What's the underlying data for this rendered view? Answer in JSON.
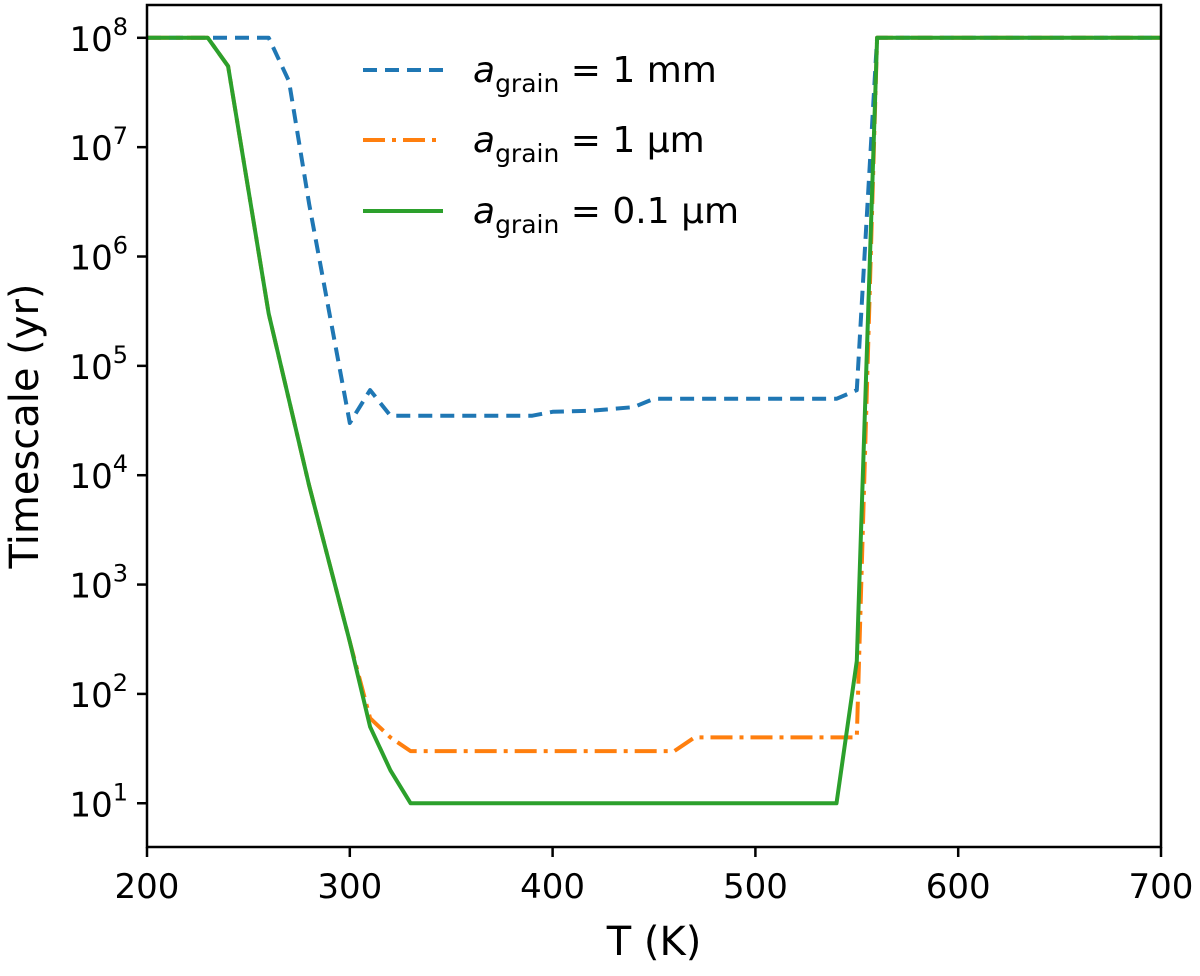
{
  "chart_data": {
    "type": "line",
    "title": "",
    "xlabel": "T (K)",
    "ylabel": "Timescale (yr)",
    "xlim": [
      200,
      700
    ],
    "ylim_log10": [
      0.6,
      8.3
    ],
    "yscale": "log",
    "legend_position": "top-center",
    "x_ticks": [
      200,
      300,
      400,
      500,
      600,
      700
    ],
    "x_tick_labels": [
      "200",
      "300",
      "400",
      "500",
      "600",
      "700"
    ],
    "y_ticks_log10": [
      1,
      2,
      3,
      4,
      5,
      6,
      7,
      8
    ],
    "y_tick_labels": [
      {
        "base": "10",
        "exp": "1"
      },
      {
        "base": "10",
        "exp": "2"
      },
      {
        "base": "10",
        "exp": "3"
      },
      {
        "base": "10",
        "exp": "4"
      },
      {
        "base": "10",
        "exp": "5"
      },
      {
        "base": "10",
        "exp": "6"
      },
      {
        "base": "10",
        "exp": "7"
      },
      {
        "base": "10",
        "exp": "8"
      }
    ],
    "series": [
      {
        "name": "a_grain = 1 mm",
        "label_var": "a",
        "label_sub": "grain",
        "label_rest": " = 1 mm",
        "color": "#1f77b4",
        "style": "dashed",
        "x": [
          200,
          230,
          260,
          270,
          280,
          290,
          300,
          310,
          320,
          330,
          340,
          350,
          360,
          370,
          380,
          390,
          400,
          420,
          440,
          450,
          460,
          480,
          500,
          520,
          540,
          550,
          560,
          600,
          650,
          700
        ],
        "y": [
          100000000.0,
          100000000.0,
          100000000.0,
          40000000.0,
          3000000.0,
          300000.0,
          30000.0,
          60000.0,
          35000.0,
          35000.0,
          35000.0,
          35000.0,
          35000.0,
          35000.0,
          35000.0,
          35000.0,
          38000.0,
          39000.0,
          42000.0,
          50000.0,
          50000.0,
          50000.0,
          50000.0,
          50000.0,
          50000.0,
          60000.0,
          100000000.0,
          100000000.0,
          100000000.0,
          100000000.0
        ]
      },
      {
        "name": "a_grain = 1 μm",
        "label_var": "a",
        "label_sub": "grain",
        "label_rest": " = 1 μm",
        "color": "#ff7f0e",
        "style": "dashdot",
        "x": [
          200,
          230,
          240,
          260,
          280,
          300,
          310,
          320,
          330,
          350,
          400,
          450,
          460,
          470,
          480,
          500,
          520,
          540,
          550,
          560,
          600,
          650,
          700
        ],
        "y": [
          100000000.0,
          100000000.0,
          55000000.0,
          300000.0,
          8000.0,
          300.0,
          60,
          40,
          30,
          30,
          30,
          30,
          30,
          40,
          40,
          40,
          40,
          40,
          40,
          100000000.0,
          100000000.0,
          100000000.0,
          100000000.0
        ]
      },
      {
        "name": "a_grain = 0.1 μm",
        "label_var": "a",
        "label_sub": "grain",
        "label_rest": " = 0.1 μm",
        "color": "#2ca02c",
        "style": "solid",
        "x": [
          200,
          230,
          240,
          260,
          280,
          300,
          310,
          320,
          330,
          350,
          400,
          450,
          500,
          540,
          550,
          560,
          600,
          650,
          700
        ],
        "y": [
          100000000.0,
          100000000.0,
          55000000.0,
          300000.0,
          8000.0,
          300.0,
          50,
          20,
          10,
          10,
          10,
          10,
          10,
          10,
          200,
          100000000.0,
          100000000.0,
          100000000.0,
          100000000.0
        ]
      }
    ]
  }
}
